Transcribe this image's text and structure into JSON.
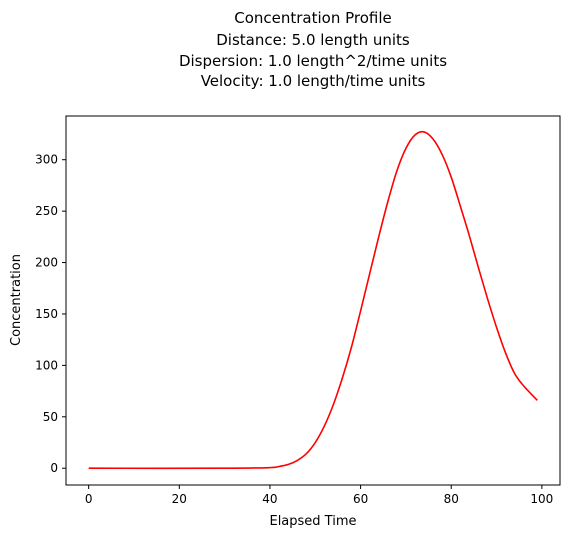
{
  "chart_data": {
    "type": "line",
    "title_lines": [
      "Concentration Profile",
      "Distance: 5.0 length units",
      "Dispersion: 1.0 length^2/time units",
      "Velocity: 1.0 length/time units"
    ],
    "xlabel": "Elapsed Time",
    "ylabel": "Concentration",
    "xlim": [
      -5,
      104
    ],
    "ylim": [
      -16.3,
      342.5
    ],
    "xticks": [
      0,
      20,
      40,
      60,
      80,
      100
    ],
    "yticks": [
      0,
      50,
      100,
      150,
      200,
      250,
      300
    ],
    "grid": false,
    "colors": {
      "line": "#ff0000",
      "axes": "#000000"
    },
    "series": [
      {
        "x": [
          0,
          30,
          40,
          42,
          44,
          46,
          48,
          50,
          52,
          54,
          56,
          58,
          60,
          62,
          64,
          66,
          68,
          70,
          72,
          74,
          76,
          78,
          80,
          82,
          84,
          86,
          88,
          90,
          92,
          94,
          96,
          99
        ],
        "y": [
          0,
          0,
          0.6,
          1.7,
          3.6,
          7.5,
          14,
          25,
          41,
          62,
          88,
          118,
          153,
          189,
          225,
          259,
          289,
          311,
          324,
          327,
          320,
          305,
          283,
          255,
          226,
          195,
          165,
          137,
          112,
          92,
          80,
          66
        ]
      }
    ]
  }
}
